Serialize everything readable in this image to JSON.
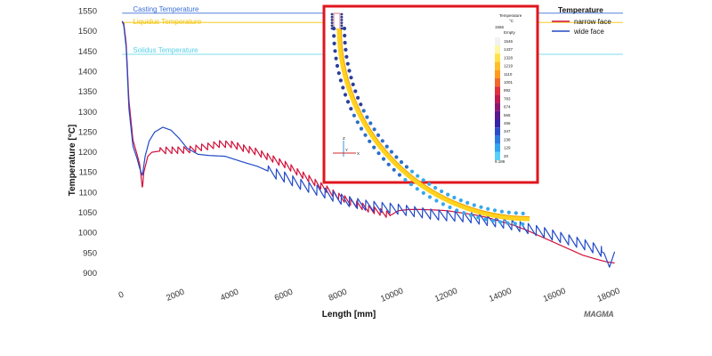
{
  "chart_data": {
    "type": "line",
    "title": "",
    "xlabel": "Length [mm]",
    "ylabel": "Temperature [°C]",
    "xlim": [
      -500,
      18500
    ],
    "ylim": [
      880,
      1560
    ],
    "x_ticks": [
      0,
      2000,
      4000,
      6000,
      8000,
      10000,
      12000,
      14000,
      16000,
      18000
    ],
    "y_ticks": [
      900,
      950,
      1000,
      1050,
      1100,
      1150,
      1200,
      1250,
      1300,
      1350,
      1400,
      1450,
      1500,
      1550
    ],
    "grid": false,
    "legend": {
      "title": "Temperature",
      "placement": "top-right"
    },
    "reference_lines": [
      {
        "label": "Casting Temperature",
        "y": 1545,
        "color": "#3b6fd8"
      },
      {
        "label": "Liquidus Temperature",
        "y": 1522,
        "color": "#f2c200"
      },
      {
        "label": "Solidus Temperature",
        "y": 1443,
        "color": "#55d0e8"
      }
    ],
    "series": [
      {
        "name": "narrow face",
        "color": "#d0103a",
        "x": [
          0,
          60,
          150,
          250,
          400,
          550,
          650,
          750,
          800,
          950,
          1100,
          1400,
          1800,
          2300,
          2800,
          3200,
          3600,
          4000,
          4500,
          5000,
          5500,
          6000,
          6500,
          7000,
          7500,
          8000,
          8500,
          9000,
          9500,
          9850,
          9950,
          10200,
          10600,
          11000,
          11500,
          12000,
          12500,
          13000,
          13500,
          14000,
          14500,
          15000,
          15500,
          16000,
          16500,
          17000,
          17500,
          17900,
          18200
        ],
        "y": [
          1525,
          1520,
          1470,
          1330,
          1230,
          1195,
          1170,
          1110,
          1150,
          1190,
          1200,
          1203,
          1205,
          1205,
          1210,
          1215,
          1220,
          1220,
          1210,
          1200,
          1185,
          1170,
          1150,
          1130,
          1110,
          1090,
          1075,
          1062,
          1052,
          1045,
          1045,
          1055,
          1058,
          1058,
          1057,
          1055,
          1050,
          1045,
          1038,
          1028,
          1018,
          1005,
          990,
          975,
          960,
          945,
          935,
          928,
          925
        ],
        "sawtooth_amplitude": 16,
        "sawtooth_period_mm": 220,
        "sawtooth_range": [
          1400,
          9900
        ]
      },
      {
        "name": "wide face",
        "color": "#2049c7",
        "x": [
          0,
          60,
          150,
          250,
          400,
          550,
          650,
          750,
          850,
          1000,
          1200,
          1500,
          1800,
          2100,
          2400,
          2800,
          3200,
          3800,
          4500,
          5000,
          5500,
          6000,
          6500,
          7000,
          7500,
          8000,
          8500,
          9000,
          9500,
          10000,
          10500,
          11000,
          11500,
          12000,
          12500,
          13000,
          13500,
          14000,
          14500,
          15000,
          15500,
          16000,
          16500,
          17000,
          17500,
          17800,
          18000,
          18200
        ],
        "y": [
          1525,
          1515,
          1460,
          1310,
          1215,
          1185,
          1160,
          1142,
          1190,
          1228,
          1250,
          1262,
          1255,
          1235,
          1210,
          1195,
          1192,
          1190,
          1175,
          1165,
          1150,
          1138,
          1122,
          1110,
          1098,
          1085,
          1075,
          1068,
          1063,
          1060,
          1055,
          1050,
          1045,
          1042,
          1040,
          1036,
          1030,
          1025,
          1018,
          1010,
          1002,
          992,
          982,
          972,
          960,
          950,
          915,
          955
        ],
        "sawtooth_amplitude": 24,
        "sawtooth_period_mm": 300,
        "sawtooth_range": [
          5400,
          17700
        ]
      }
    ]
  },
  "inset": {
    "legend_title": "Temperature",
    "legend_unit": "°C",
    "max_label": "1566",
    "empty_label": "Empty",
    "scale_values": [
      "1546",
      "1437",
      "1328",
      "1219",
      "1110",
      "1001",
      "892",
      "783",
      "674",
      "565",
      "456",
      "347",
      "238",
      "129",
      "20"
    ],
    "min_label": "9.186",
    "scale_colors": [
      "#f2f2f2",
      "#fff6a6",
      "#ffe24a",
      "#ffbf2a",
      "#ff9a1c",
      "#f2682a",
      "#e0303c",
      "#c01850",
      "#8a1670",
      "#5a1a8a",
      "#3424a8",
      "#2a4cc8",
      "#2a7ae0",
      "#30a6f0",
      "#58d0f8"
    ],
    "axis_labels": {
      "z": "Z",
      "y": "Y",
      "x": "X"
    },
    "border_color": "#e0161e"
  },
  "logo_text": "MAGMA"
}
